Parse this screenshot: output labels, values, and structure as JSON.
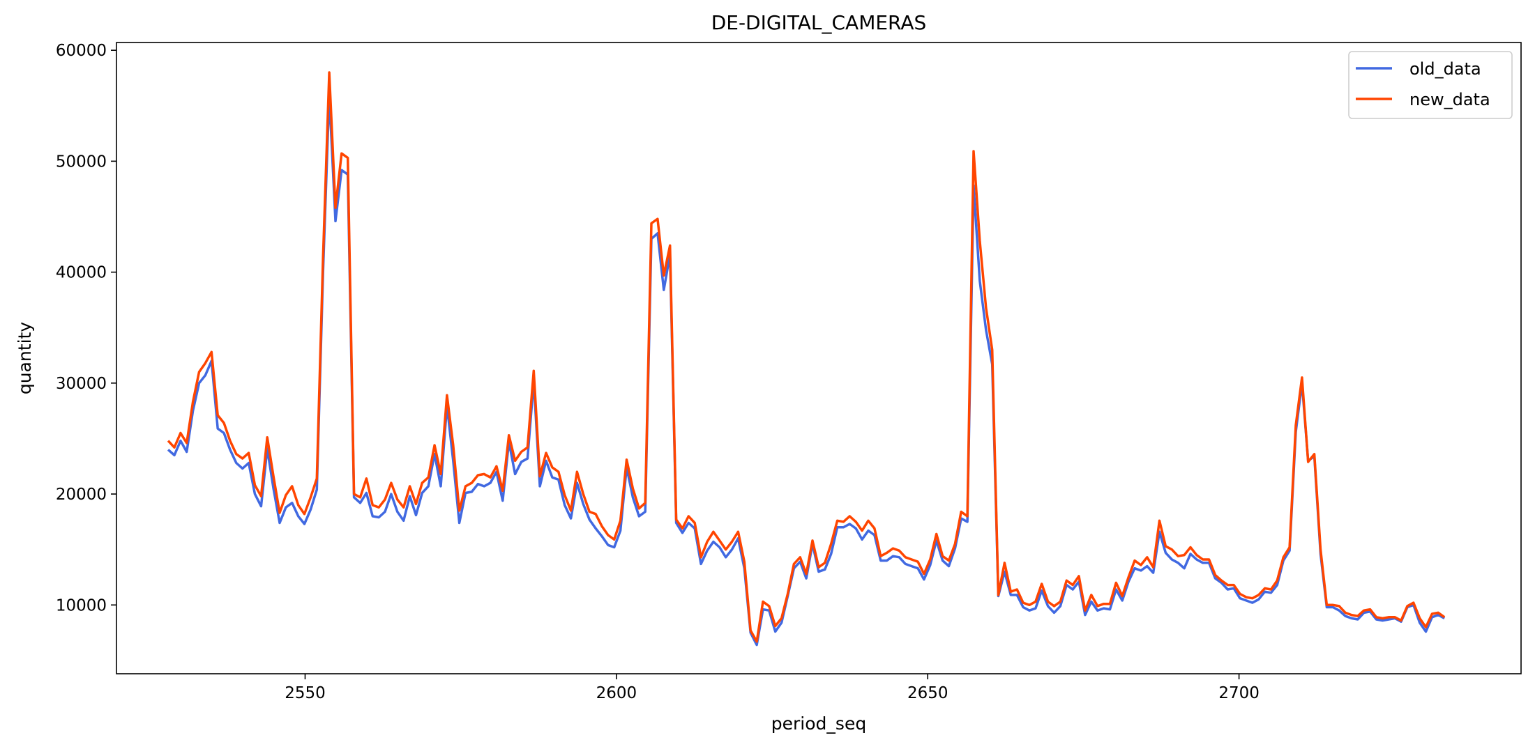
{
  "chart_data": {
    "type": "line",
    "title": "DE-DIGITAL_CAMERAS",
    "xlabel": "period_seq",
    "ylabel": "quantity",
    "xlim": [
      2519.7,
      2745.3
    ],
    "ylim": [
      3800,
      60700
    ],
    "xticks": [
      2550,
      2600,
      2650,
      2700
    ],
    "yticks": [
      10000,
      20000,
      30000,
      40000,
      50000,
      60000
    ],
    "grid": false,
    "legend_position": "top-right",
    "x_start": 2528,
    "x_end": 2733,
    "series": [
      {
        "name": "old_data",
        "color": "#4169E1",
        "values": [
          24000,
          23500,
          24800,
          23800,
          27500,
          30000,
          30700,
          32000,
          25900,
          25500,
          24000,
          22800,
          22300,
          22800,
          20000,
          18900,
          24100,
          20500,
          17400,
          18800,
          19200,
          18000,
          17300,
          18600,
          20400,
          40000,
          56000,
          44600,
          49200,
          48800,
          19700,
          19200,
          20100,
          18000,
          17900,
          18400,
          20000,
          18400,
          17600,
          19800,
          18100,
          20100,
          20700,
          23600,
          20700,
          28000,
          23000,
          17400,
          20100,
          20200,
          20900,
          20700,
          21000,
          22000,
          19400,
          24700,
          21800,
          22900,
          23200,
          30200,
          20700,
          23000,
          21500,
          21300,
          19000,
          17800,
          21000,
          19100,
          17700,
          16900,
          16200,
          15400,
          15200,
          16700,
          22400,
          19700,
          18000,
          18400,
          43000,
          43500,
          38400,
          41600,
          17400,
          16500,
          17400,
          16900,
          13700,
          14900,
          15700,
          15200,
          14300,
          15000,
          16000,
          13300,
          7500,
          6400,
          9600,
          9500,
          7600,
          8400,
          10800,
          13300,
          13900,
          12400,
          15500,
          13000,
          13200,
          14600,
          17000,
          17000,
          17300,
          16900,
          15900,
          16700,
          16300,
          14000,
          14000,
          14400,
          14300,
          13700,
          13500,
          13300,
          12300,
          13600,
          15800,
          14000,
          13500,
          15100,
          17800,
          17500,
          47800,
          39200,
          34800,
          31700,
          10800,
          13000,
          10900,
          10900,
          9800,
          9500,
          9700,
          11300,
          9900,
          9300,
          9900,
          11800,
          11400,
          12100,
          9100,
          10300,
          9500,
          9700,
          9600,
          11400,
          10400,
          12100,
          13300,
          13100,
          13500,
          12900,
          16600,
          14700,
          14100,
          13800,
          13300,
          14600,
          14100,
          13800,
          13800,
          12400,
          12000,
          11400,
          11500,
          10600,
          10400,
          10200,
          10500,
          11200,
          11100,
          11800,
          14000,
          14900,
          25600,
          30000,
          23000,
          23400,
          14600,
          9800,
          9800,
          9500,
          9000,
          8800,
          8700,
          9300,
          9400,
          8700,
          8600,
          8700,
          8800,
          8500,
          9800,
          10000,
          8400,
          7600,
          8900,
          9100,
          8800
        ]
      },
      {
        "name": "new_data",
        "color": "#FF4500",
        "values": [
          24800,
          24200,
          25500,
          24600,
          28300,
          31000,
          31800,
          32800,
          27100,
          26400,
          24800,
          23600,
          23200,
          23700,
          20800,
          19800,
          25100,
          21600,
          18300,
          19900,
          20700,
          19000,
          18200,
          19700,
          21400,
          41300,
          58000,
          45800,
          50700,
          50300,
          20000,
          19700,
          21400,
          19000,
          18800,
          19500,
          21000,
          19500,
          18800,
          20700,
          19100,
          21000,
          21500,
          24400,
          21800,
          28900,
          24400,
          18500,
          20700,
          21000,
          21700,
          21800,
          21500,
          22500,
          20300,
          25300,
          23000,
          23800,
          24200,
          31100,
          21600,
          23700,
          22400,
          22000,
          19900,
          18500,
          22000,
          20000,
          18400,
          18200,
          17100,
          16300,
          15900,
          17600,
          23100,
          20500,
          18700,
          19200,
          44400,
          44800,
          39700,
          42400,
          17700,
          16900,
          18000,
          17400,
          14300,
          15700,
          16600,
          15800,
          15000,
          15700,
          16600,
          13900,
          7700,
          6700,
          10300,
          9900,
          8100,
          8800,
          11000,
          13700,
          14300,
          12800,
          15800,
          13400,
          13800,
          15500,
          17600,
          17500,
          18000,
          17500,
          16700,
          17600,
          16900,
          14400,
          14700,
          15100,
          14900,
          14300,
          14100,
          13900,
          12800,
          14100,
          16400,
          14400,
          14000,
          15500,
          18400,
          18000,
          50900,
          42800,
          36800,
          33000,
          10900,
          13800,
          11200,
          11400,
          10200,
          10000,
          10300,
          11900,
          10300,
          9900,
          10300,
          12200,
          11800,
          12600,
          9500,
          10900,
          9900,
          10100,
          10100,
          12000,
          10800,
          12500,
          14000,
          13600,
          14300,
          13400,
          17600,
          15300,
          15000,
          14400,
          14500,
          15200,
          14500,
          14100,
          14100,
          12700,
          12200,
          11800,
          11800,
          11000,
          10700,
          10600,
          10900,
          11500,
          11400,
          12200,
          14300,
          15200,
          26200,
          30500,
          22900,
          23600,
          15000,
          10000,
          10000,
          9900,
          9300,
          9100,
          9000,
          9500,
          9600,
          8900,
          8800,
          8900,
          8900,
          8600,
          9900,
          10200,
          8800,
          8000,
          9200,
          9300,
          8900
        ]
      }
    ]
  }
}
